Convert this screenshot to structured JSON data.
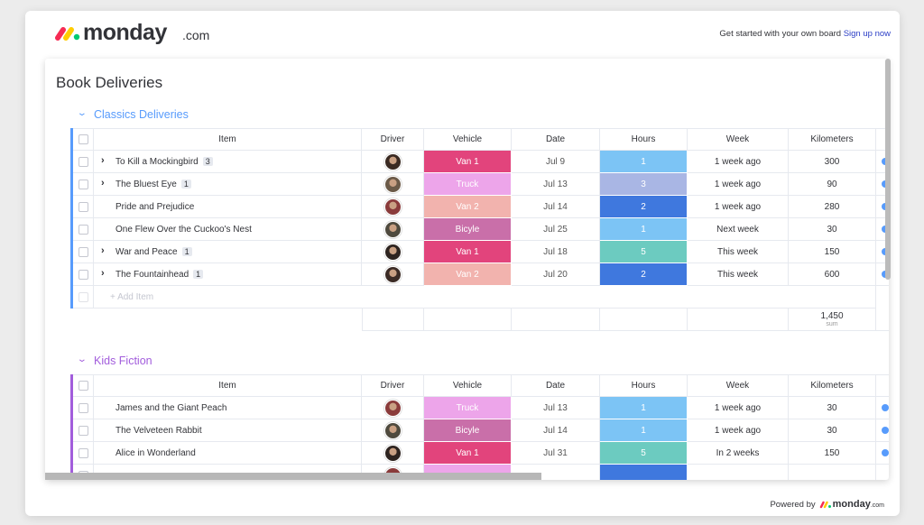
{
  "header": {
    "logo": "monday",
    "logo_suffix": ".com",
    "cta_text": "Get started with your own board",
    "cta_link": "Sign up now"
  },
  "board": {
    "title": "Book Deliveries",
    "groups": [
      {
        "name": "Classics Deliveries",
        "color": "#579bfc",
        "columns": [
          "Item",
          "Driver",
          "Vehicle",
          "Date",
          "Hours",
          "Week",
          "Kilometers"
        ],
        "rows": [
          {
            "item": "To Kill a Mockingbird",
            "subitems": 3,
            "vehicle": {
              "label": "Van 1",
              "color": "#e2447c"
            },
            "date": "Jul 9",
            "hours": {
              "value": 1,
              "color": "#7cc4f5"
            },
            "week": "1 week ago",
            "kilometers": 300
          },
          {
            "item": "The Bluest Eye",
            "subitems": 1,
            "vehicle": {
              "label": "Truck",
              "color": "#eda5ea"
            },
            "date": "Jul 13",
            "hours": {
              "value": 3,
              "color": "#a9b6e4"
            },
            "week": "1 week ago",
            "kilometers": 90
          },
          {
            "item": "Pride and Prejudice",
            "vehicle": {
              "label": "Van 2",
              "color": "#f2b3ae"
            },
            "date": "Jul 14",
            "hours": {
              "value": 2,
              "color": "#3f78de"
            },
            "week": "1 week ago",
            "kilometers": 280
          },
          {
            "item": "One Flew Over the Cuckoo's Nest",
            "vehicle": {
              "label": "Bicyle",
              "color": "#c96fa9"
            },
            "date": "Jul 25",
            "hours": {
              "value": 1,
              "color": "#7cc4f5"
            },
            "week": "Next week",
            "kilometers": 30
          },
          {
            "item": "War and Peace",
            "subitems": 1,
            "vehicle": {
              "label": "Van 1",
              "color": "#e2447c"
            },
            "date": "Jul 18",
            "hours": {
              "value": 5,
              "color": "#6ccbc0"
            },
            "week": "This week",
            "kilometers": 150
          },
          {
            "item": "The Fountainhead",
            "subitems": 1,
            "vehicle": {
              "label": "Van 2",
              "color": "#f2b3ae"
            },
            "date": "Jul 20",
            "hours": {
              "value": 2,
              "color": "#3f78de"
            },
            "week": "This week",
            "kilometers": 600
          }
        ],
        "add_item": "+ Add Item",
        "summary": {
          "value": "1,450",
          "label": "sum"
        }
      },
      {
        "name": "Kids Fiction",
        "color": "#a25ddc",
        "columns": [
          "Item",
          "Driver",
          "Vehicle",
          "Date",
          "Hours",
          "Week",
          "Kilometers"
        ],
        "rows": [
          {
            "item": "James and the Giant Peach",
            "vehicle": {
              "label": "Truck",
              "color": "#eda5ea"
            },
            "date": "Jul 13",
            "hours": {
              "value": 1,
              "color": "#7cc4f5"
            },
            "week": "1 week ago",
            "kilometers": 30
          },
          {
            "item": "The Velveteen Rabbit",
            "vehicle": {
              "label": "Bicyle",
              "color": "#c96fa9"
            },
            "date": "Jul 14",
            "hours": {
              "value": 1,
              "color": "#7cc4f5"
            },
            "week": "1 week ago",
            "kilometers": 30
          },
          {
            "item": "Alice in Wonderland",
            "vehicle": {
              "label": "Van 1",
              "color": "#e2447c"
            },
            "date": "Jul 31",
            "hours": {
              "value": 5,
              "color": "#6ccbc0"
            },
            "week": "In 2 weeks",
            "kilometers": 150
          }
        ]
      }
    ]
  },
  "footer": {
    "text": "Powered by",
    "logo": "monday",
    "logo_suffix": ".com"
  }
}
